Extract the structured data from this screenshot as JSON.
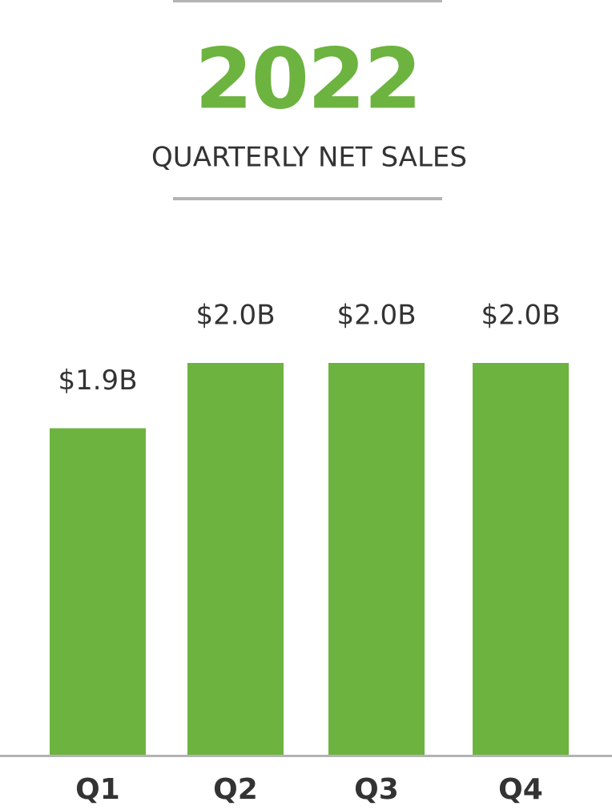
{
  "chart_data": {
    "type": "bar",
    "title": "2022",
    "subtitle": "QUARTERLY NET SALES",
    "categories": [
      "Q1",
      "Q2",
      "Q3",
      "Q4"
    ],
    "values": [
      1.9,
      2.0,
      2.0,
      2.0
    ],
    "value_labels": [
      "$1.9B",
      "$2.0B",
      "$2.0B",
      "$2.0B"
    ],
    "color": "#6db33f",
    "ylim": [
      1.4,
      2.0
    ]
  }
}
